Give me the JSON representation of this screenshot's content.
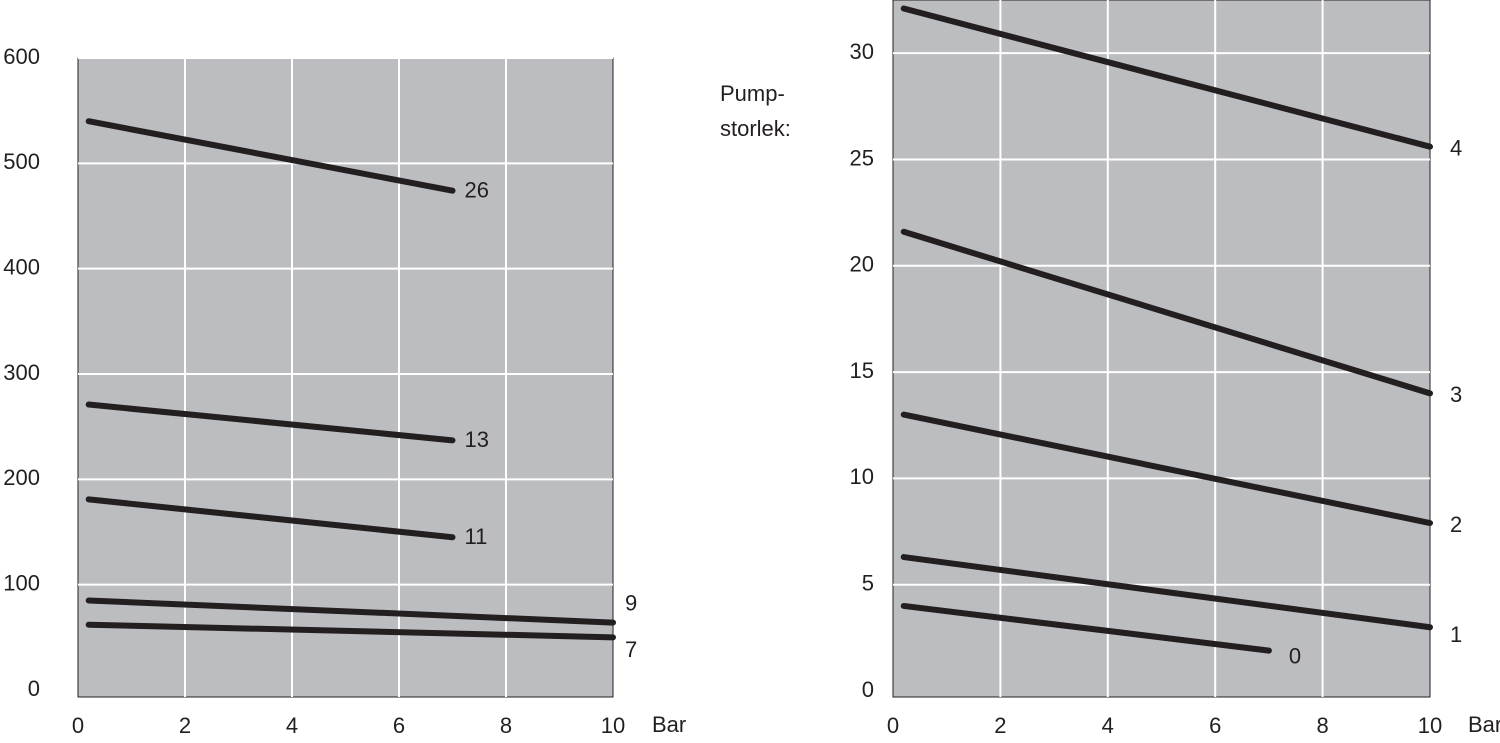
{
  "chart_data": [
    {
      "type": "line",
      "x_label": "Bar",
      "xlim": [
        0,
        10
      ],
      "xticks": [
        0,
        2,
        4,
        6,
        8,
        10
      ],
      "ylim": [
        0,
        600
      ],
      "yticks": [
        0,
        100,
        200,
        300,
        400,
        500,
        600
      ],
      "grid": true,
      "background": "#bcbdc0",
      "grid_color": "#ffffff",
      "series": [
        {
          "name": "26",
          "color": "#231f20",
          "x": [
            0.2,
            7
          ],
          "values": [
            540,
            474
          ]
        },
        {
          "name": "13",
          "color": "#231f20",
          "x": [
            0.2,
            7
          ],
          "values": [
            271,
            237
          ]
        },
        {
          "name": "11",
          "color": "#231f20",
          "x": [
            0.2,
            7
          ],
          "values": [
            181,
            145
          ]
        },
        {
          "name": "9",
          "color": "#231f20",
          "x": [
            0.2,
            10
          ],
          "values": [
            85,
            64
          ]
        },
        {
          "name": "7",
          "color": "#231f20",
          "x": [
            0.2,
            10
          ],
          "values": [
            62,
            50
          ]
        }
      ]
    },
    {
      "type": "line",
      "x_label": "Bar",
      "annotations": [
        "Pump-",
        "storlek:"
      ],
      "xlim": [
        0,
        10
      ],
      "xticks": [
        0,
        2,
        4,
        6,
        8,
        10
      ],
      "ylim": [
        0,
        32.5
      ],
      "yticks": [
        0,
        5,
        10,
        15,
        20,
        25,
        30
      ],
      "grid": true,
      "background": "#bcbdc0",
      "grid_color": "#ffffff",
      "series": [
        {
          "name": "4",
          "color": "#231f20",
          "x": [
            0.2,
            10
          ],
          "values": [
            32.1,
            25.6
          ]
        },
        {
          "name": "3",
          "color": "#231f20",
          "x": [
            0.2,
            10
          ],
          "values": [
            21.6,
            14.0
          ]
        },
        {
          "name": "2",
          "color": "#231f20",
          "x": [
            0.2,
            10
          ],
          "values": [
            13.0,
            7.9
          ]
        },
        {
          "name": "1",
          "color": "#231f20",
          "x": [
            0.2,
            10
          ],
          "values": [
            6.3,
            3.0
          ]
        },
        {
          "name": "0",
          "color": "#231f20",
          "x": [
            0.2,
            7
          ],
          "values": [
            4.0,
            1.9
          ]
        }
      ]
    }
  ]
}
